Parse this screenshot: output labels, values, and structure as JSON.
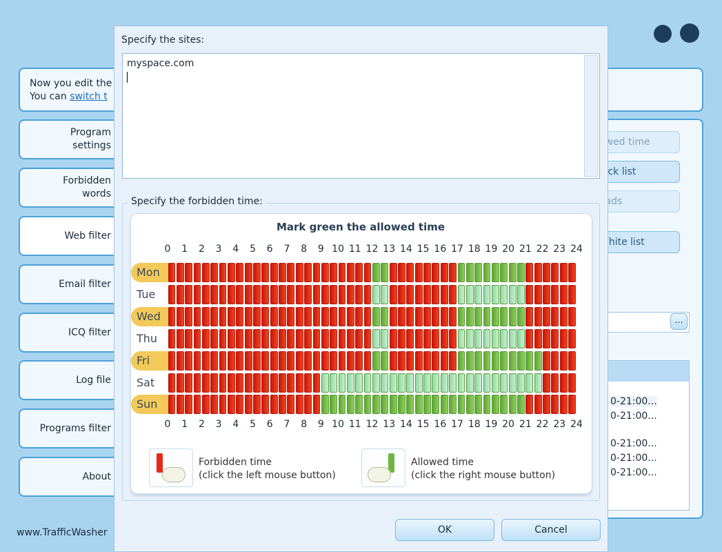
{
  "window": {
    "info": {
      "line1": "Now you edit the",
      "line2": "You can",
      "link": "switch t"
    },
    "sidebar": [
      [
        "Program",
        "settings"
      ],
      [
        "Forbidden",
        "words"
      ],
      [
        "Web filter"
      ],
      [
        "Email filter"
      ],
      [
        "ICQ filter"
      ],
      [
        "Log file"
      ],
      [
        "Programs filter"
      ],
      [
        "About"
      ]
    ],
    "footer": "www.TrafficWasher",
    "right_buttons": [
      "owed time",
      "lack list",
      "oads",
      "White list"
    ],
    "browse": "...",
    "list_rows": [
      "0-21:00...",
      "0-21:00...",
      "0-21:00...",
      "0-21:00...",
      "0-21:00..."
    ]
  },
  "dialog": {
    "sites_label": "Specify the sites:",
    "sites_text": "myspace.com",
    "time_label": "Specify the forbidden time:",
    "grid": {
      "title": "Mark green the allowed time",
      "hours": [
        0,
        1,
        2,
        3,
        4,
        5,
        6,
        7,
        8,
        9,
        10,
        11,
        12,
        13,
        14,
        15,
        16,
        17,
        18,
        19,
        20,
        21,
        22,
        23,
        24
      ],
      "days": [
        {
          "name": "Mon",
          "allowed": [
            [
              12,
              13
            ],
            [
              17,
              21
            ]
          ]
        },
        {
          "name": "Tue",
          "allowed": [
            [
              12,
              13
            ],
            [
              17,
              21
            ]
          ]
        },
        {
          "name": "Wed",
          "allowed": [
            [
              12,
              13
            ],
            [
              17,
              21
            ]
          ]
        },
        {
          "name": "Thu",
          "allowed": [
            [
              12,
              13
            ],
            [
              17,
              21
            ]
          ]
        },
        {
          "name": "Fri",
          "allowed": [
            [
              12,
              13
            ],
            [
              17,
              22
            ]
          ]
        },
        {
          "name": "Sat",
          "allowed": [
            [
              9,
              22
            ]
          ]
        },
        {
          "name": "Sun",
          "allowed": [
            [
              9,
              21
            ]
          ]
        }
      ]
    },
    "legend": [
      {
        "title": "Forbidden time",
        "hint": "(click the left mouse button)"
      },
      {
        "title": "Allowed time",
        "hint": "(click the right mouse button)"
      }
    ],
    "ok": "OK",
    "cancel": "Cancel"
  }
}
